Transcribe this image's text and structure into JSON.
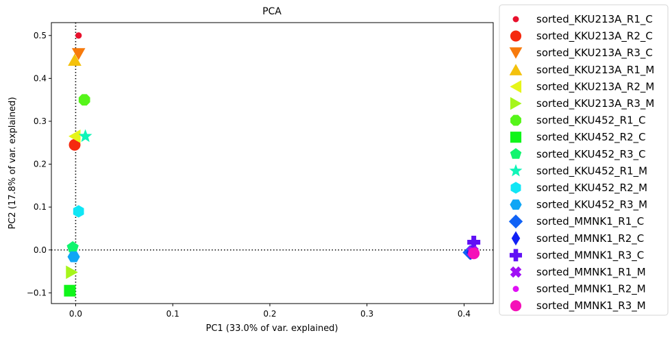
{
  "chart_data": {
    "type": "scatter",
    "title": "PCA",
    "xlabel": "PC1 (33.0% of var. explained)",
    "ylabel": "PC2 (17.8% of var. explained)",
    "xlim": [
      -0.025,
      0.43
    ],
    "ylim": [
      -0.125,
      0.53
    ],
    "x_ticks": [
      0.0,
      0.1,
      0.2,
      0.3,
      0.4
    ],
    "x_tick_labels": [
      "0.0",
      "0.1",
      "0.2",
      "0.3",
      "0.4"
    ],
    "y_ticks": [
      -0.1,
      0.0,
      0.1,
      0.2,
      0.3,
      0.4,
      0.5
    ],
    "y_tick_labels": [
      "−0.1",
      "0.0",
      "0.1",
      "0.2",
      "0.3",
      "0.4",
      "0.5"
    ],
    "reference_lines": [
      {
        "axis": "x",
        "value": 0,
        "style": "dotted"
      },
      {
        "axis": "y",
        "value": 0,
        "style": "dotted"
      }
    ],
    "legend_position": "outside-right",
    "grid": false,
    "series": [
      {
        "name": "sorted_KKU213A_R1_C",
        "x": 0.003,
        "y": 0.5,
        "marker": "point",
        "color": "#e8112d"
      },
      {
        "name": "sorted_KKU213A_R2_C",
        "x": -0.001,
        "y": 0.245,
        "marker": "circle",
        "color": "#f5290f"
      },
      {
        "name": "sorted_KKU213A_R3_C",
        "x": 0.003,
        "y": 0.457,
        "marker": "triangle-down",
        "color": "#f77a0c"
      },
      {
        "name": "sorted_KKU213A_R1_M",
        "x": -0.001,
        "y": 0.443,
        "marker": "triangle-up",
        "color": "#f4c10c"
      },
      {
        "name": "sorted_KKU213A_R2_M",
        "x": -0.001,
        "y": 0.265,
        "marker": "triangle-left",
        "color": "#e6f51a"
      },
      {
        "name": "sorted_KKU213A_R3_M",
        "x": -0.004,
        "y": -0.052,
        "marker": "triangle-right",
        "color": "#a6f51a"
      },
      {
        "name": "sorted_KKU452_R1_C",
        "x": 0.009,
        "y": 0.35,
        "marker": "octagon",
        "color": "#56f51a"
      },
      {
        "name": "sorted_KKU452_R2_C",
        "x": -0.006,
        "y": -0.095,
        "marker": "square",
        "color": "#10f51a"
      },
      {
        "name": "sorted_KKU452_R3_C",
        "x": -0.003,
        "y": 0.006,
        "marker": "pentagon",
        "color": "#10f56e"
      },
      {
        "name": "sorted_KKU452_R1_M",
        "x": 0.01,
        "y": 0.265,
        "marker": "star",
        "color": "#10f5b8"
      },
      {
        "name": "sorted_KKU452_R2_M",
        "x": 0.003,
        "y": 0.09,
        "marker": "hexagon",
        "color": "#10e6f5"
      },
      {
        "name": "sorted_KKU452_R3_M",
        "x": -0.002,
        "y": -0.016,
        "marker": "hexagon2",
        "color": "#10a6f5"
      },
      {
        "name": "sorted_MMNK1_R1_C",
        "x": 0.406,
        "y": -0.006,
        "marker": "diamond",
        "color": "#1062f5"
      },
      {
        "name": "sorted_MMNK1_R2_C",
        "x": 0.407,
        "y": -0.006,
        "marker": "thin-diamond",
        "color": "#1020f5"
      },
      {
        "name": "sorted_MMNK1_R3_C",
        "x": 0.41,
        "y": 0.018,
        "marker": "plus",
        "color": "#6010f5"
      },
      {
        "name": "sorted_MMNK1_R1_M",
        "x": 0.409,
        "y": -0.004,
        "marker": "x",
        "color": "#a010f5"
      },
      {
        "name": "sorted_MMNK1_R2_M",
        "x": 0.41,
        "y": -0.007,
        "marker": "point",
        "color": "#e010f5"
      },
      {
        "name": "sorted_MMNK1_R3_M",
        "x": 0.41,
        "y": -0.008,
        "marker": "circle",
        "color": "#f510b8"
      }
    ]
  }
}
